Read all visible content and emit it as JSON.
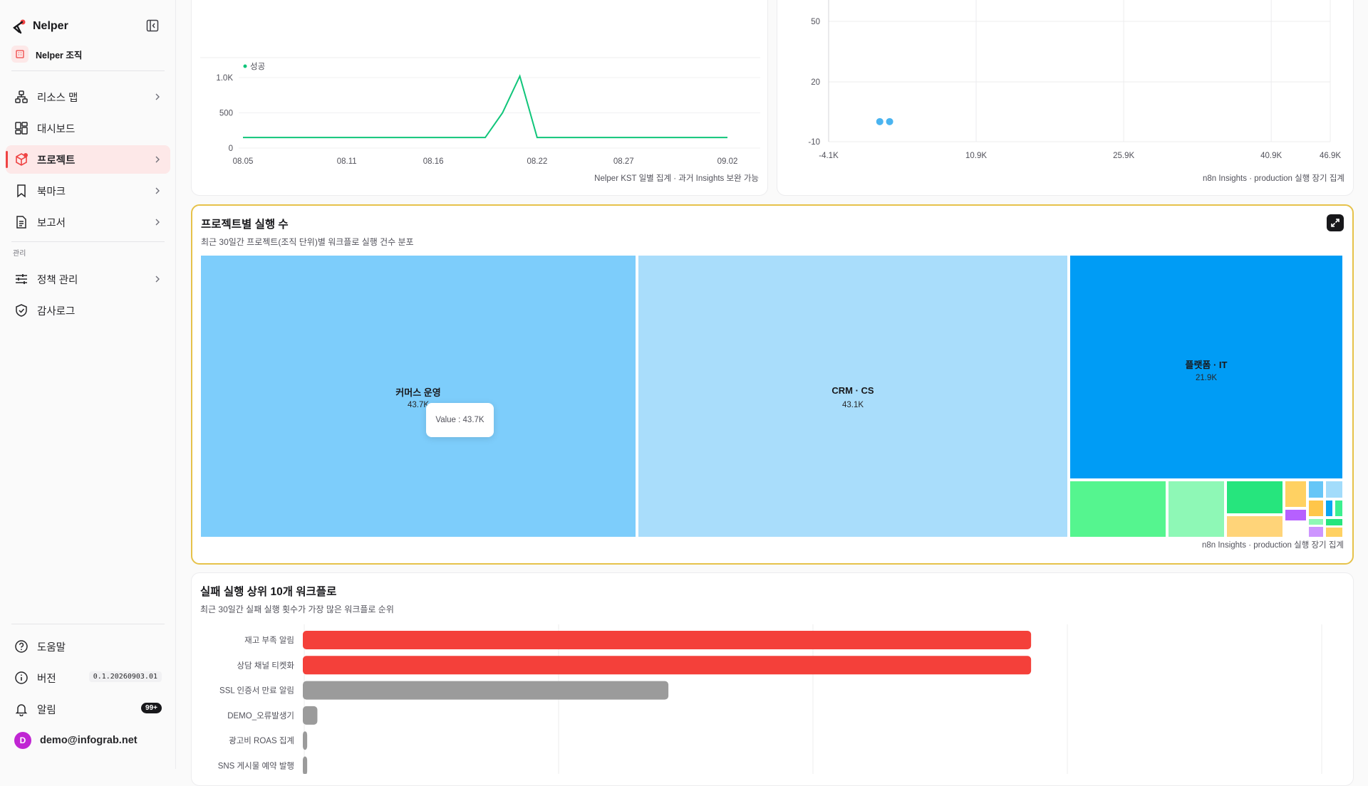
{
  "sidebar": {
    "brand": "Nelper",
    "org": "Nelper 조직",
    "items": [
      {
        "label": "리소스 맵",
        "icon": "sitemap-icon"
      },
      {
        "label": "대시보드",
        "icon": "dashboard-icon"
      },
      {
        "label": "프로젝트",
        "icon": "box-icon"
      },
      {
        "label": "북마크",
        "icon": "bookmark-icon"
      },
      {
        "label": "보고서",
        "icon": "document-icon"
      }
    ],
    "section_admin": "관리",
    "admin_items": [
      {
        "label": "정책 관리",
        "icon": "sliders-icon"
      },
      {
        "label": "감사로그",
        "icon": "shield-check-icon"
      }
    ],
    "help": "도움말",
    "version_label": "버전",
    "version": "0.1.20260903.01",
    "alerts_label": "알림",
    "alerts_count": "99+",
    "user_initial": "D",
    "user_email": "demo@infograb.net"
  },
  "line_card": {
    "legend": "성공",
    "footer": "Nelper KST 일별 집계 · 과거 Insights 보완 가능",
    "chart_data": {
      "type": "line",
      "x": [
        "08.05",
        "08.06",
        "08.07",
        "08.08",
        "08.09",
        "08.10",
        "08.11",
        "08.12",
        "08.13",
        "08.14",
        "08.15",
        "08.16",
        "08.17",
        "08.18",
        "08.19",
        "08.20",
        "08.21",
        "08.22",
        "08.23",
        "08.24",
        "08.25",
        "08.26",
        "08.27",
        "08.28",
        "08.29",
        "08.30",
        "08.31",
        "09.01",
        "09.02"
      ],
      "series": [
        {
          "name": "성공",
          "values": [
            150,
            150,
            150,
            150,
            150,
            150,
            150,
            150,
            150,
            150,
            150,
            150,
            150,
            150,
            150,
            500,
            1020,
            150,
            150,
            150,
            150,
            150,
            150,
            150,
            150,
            150,
            150,
            150,
            150
          ]
        }
      ],
      "x_ticks": [
        "08.05",
        "08.11",
        "08.16",
        "08.22",
        "08.27",
        "09.02"
      ],
      "y_ticks": [
        "0",
        "500",
        "1.0K"
      ],
      "ylim": [
        0,
        1050
      ],
      "color": "#10c57a"
    }
  },
  "scatter_card": {
    "footer": "n8n Insights · production 실행 장기 집계",
    "chart_data": {
      "type": "scatter",
      "x_ticks": [
        "-4.1K",
        "10.9K",
        "25.9K",
        "40.9K",
        "46.9K"
      ],
      "y_ticks": [
        "50",
        "20",
        "-10"
      ],
      "xlim": [
        -4100,
        46900
      ],
      "ylim": [
        -10,
        60
      ],
      "points": [
        [
          1100,
          0
        ],
        [
          2100,
          0
        ]
      ],
      "color": "#4ab4f0"
    }
  },
  "treemap_card": {
    "title": "프로젝트별 실행 수",
    "subtitle": "최근 30일간 프로젝트(조직 단위)별 워크플로 실행 건수 분포",
    "footer": "n8n Insights · production 실행 장기 집계",
    "tooltip": "Value : 43.7K",
    "chart_data": {
      "type": "treemap",
      "nodes": [
        {
          "name": "커머스 운영",
          "value": 43.7,
          "label": "43.7K",
          "color": "#7dcdfb"
        },
        {
          "name": "CRM · CS",
          "value": 43.1,
          "label": "43.1K",
          "color": "#a9ddfb"
        },
        {
          "name": "플랫폼 · IT",
          "value": 21.9,
          "label": "21.9K",
          "color": "#009cf5"
        }
      ],
      "small_colors": [
        "#55f58f",
        "#8ef8b6",
        "#26e57d",
        "#ffd479",
        "#ffd162",
        "#b660ff",
        "#66c6f7",
        "#a2dcfb",
        "#ffc64a",
        "#0aa6f1",
        "#3cf08f",
        "#8ef8b6",
        "#cd95ff",
        "#26e57d",
        "#ffd162"
      ]
    }
  },
  "bar_card": {
    "title": "실패 실행 상위 10개 워크플로",
    "subtitle": "최근 30일간 실패 실행 횟수가 가장 많은 워크플로 순위",
    "chart_data": {
      "type": "bar",
      "orientation": "horizontal",
      "categories": [
        "재고 부족 알림",
        "상담 채널 티켓화",
        "SSL 인증서 만료 알림",
        "DEMO_오류발생기",
        "광고비 ROAS 집계",
        "SNS 게시물 예약 발행"
      ],
      "values": [
        1000,
        1000,
        502,
        20,
        6,
        6
      ],
      "colors": [
        "#f4403a",
        "#f4403a",
        "#9b9b9b",
        "#9b9b9b",
        "#9b9b9b",
        "#9b9b9b"
      ],
      "xlim": [
        0,
        1400
      ]
    }
  }
}
